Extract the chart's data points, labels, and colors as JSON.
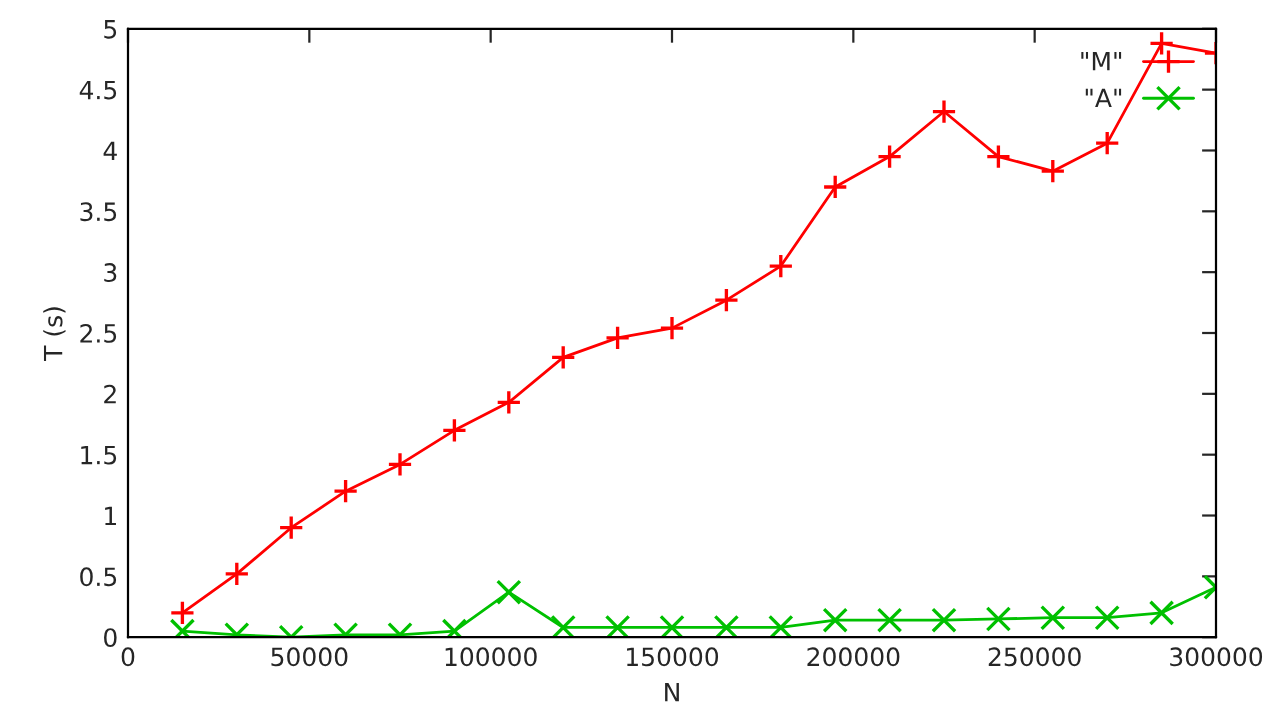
{
  "chart_data": {
    "type": "line",
    "xlabel": "N",
    "ylabel": "T (s)",
    "x": [
      15000,
      30000,
      45000,
      60000,
      75000,
      90000,
      105000,
      120000,
      135000,
      150000,
      165000,
      180000,
      195000,
      210000,
      225000,
      240000,
      255000,
      270000,
      285000,
      300000
    ],
    "series": [
      {
        "name": "\"M\"",
        "color": "#ff0000",
        "marker": "plus",
        "values": [
          0.2,
          0.52,
          0.9,
          1.2,
          1.42,
          1.7,
          1.93,
          2.3,
          2.46,
          2.54,
          2.77,
          3.05,
          3.7,
          3.95,
          4.32,
          3.95,
          3.83,
          4.06,
          4.88,
          4.8
        ]
      },
      {
        "name": "\"A\"",
        "color": "#00c000",
        "marker": "cross",
        "values": [
          0.05,
          0.02,
          0.0,
          0.02,
          0.02,
          0.05,
          0.37,
          0.08,
          0.08,
          0.08,
          0.08,
          0.08,
          0.14,
          0.14,
          0.14,
          0.15,
          0.16,
          0.16,
          0.2,
          0.41
        ]
      }
    ],
    "xlim": [
      0,
      300000
    ],
    "xticks": [
      0,
      50000,
      100000,
      150000,
      200000,
      250000,
      300000
    ],
    "ylim": [
      0,
      5
    ],
    "yticks": [
      0,
      0.5,
      1,
      1.5,
      2,
      2.5,
      3,
      3.5,
      4,
      4.5,
      5
    ],
    "legend": "top right",
    "grid": false
  }
}
